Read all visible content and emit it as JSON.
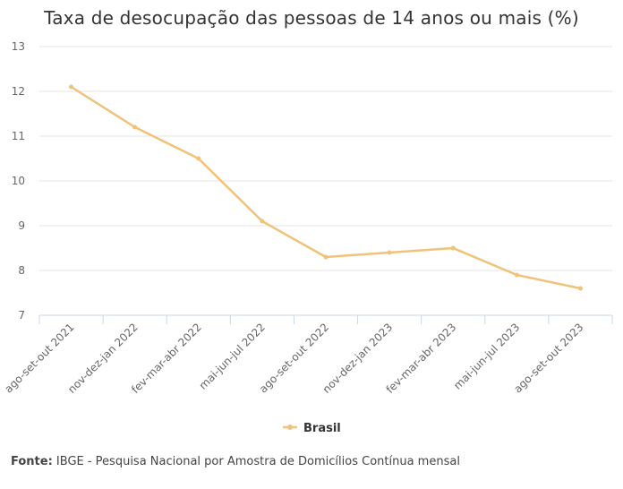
{
  "source": {
    "label": "Fonte:",
    "text": " IBGE - Pesquisa Nacional por Amostra de Domicílios Contínua mensal"
  },
  "colors": {
    "series": "#f0c27a",
    "grid": "#e6e6e6",
    "axis": "#ccd6eb",
    "text": "#666666"
  },
  "chart_data": {
    "type": "line",
    "title": "Taxa de desocupação das pessoas de 14 anos ou mais (%)",
    "xlabel": "",
    "ylabel": "",
    "ylim": [
      7,
      13
    ],
    "yticks": [
      7,
      8,
      9,
      10,
      11,
      12,
      13
    ],
    "grid": true,
    "legend": "bottom-center",
    "categories": [
      "ago-set-out 2021",
      "nov-dez-jan 2022",
      "fev-mar-abr 2022",
      "mai-jun-jul 2022",
      "ago-set-out 2022",
      "nov-dez-jan 2023",
      "fev-mar-abr 2023",
      "mai-jun-jul 2023",
      "ago-set-out 2023"
    ],
    "series": [
      {
        "name": "Brasil",
        "values": [
          12.1,
          11.2,
          10.5,
          9.1,
          8.3,
          8.4,
          8.5,
          7.9,
          7.6
        ]
      }
    ]
  }
}
